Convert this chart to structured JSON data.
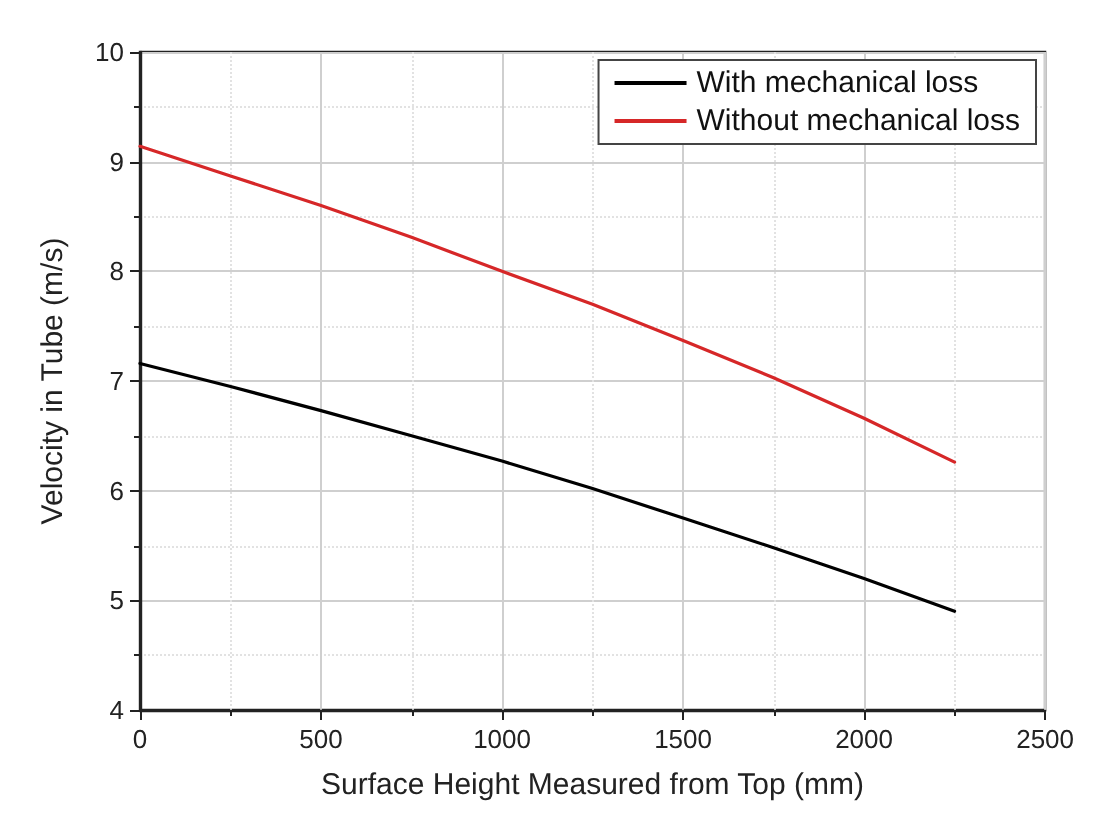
{
  "chart_data": {
    "type": "line",
    "xlabel": "Surface Height Measured from Top (mm)",
    "ylabel": "Velocity in Tube (m/s)",
    "x": [
      0,
      250,
      500,
      750,
      1000,
      1250,
      1500,
      1750,
      2000,
      2250
    ],
    "series": [
      {
        "name": "With mechanical loss",
        "color": "#000000",
        "values": [
          7.16,
          6.95,
          6.73,
          6.5,
          6.27,
          6.02,
          5.75,
          5.48,
          5.2,
          4.9
        ]
      },
      {
        "name": "Without mechanical loss",
        "color": "#d62728",
        "values": [
          9.14,
          8.87,
          8.6,
          8.31,
          8.0,
          7.7,
          7.37,
          7.03,
          6.66,
          6.26
        ]
      }
    ],
    "xlim": [
      0,
      2500
    ],
    "xticks": [
      0,
      500,
      1000,
      1500,
      2000,
      2500
    ],
    "ylim": [
      4,
      10
    ],
    "yticks": [
      4,
      5,
      6,
      7,
      8,
      9,
      10
    ],
    "grid": true,
    "legend": "top right",
    "marker": "none",
    "line_style": "solid"
  }
}
